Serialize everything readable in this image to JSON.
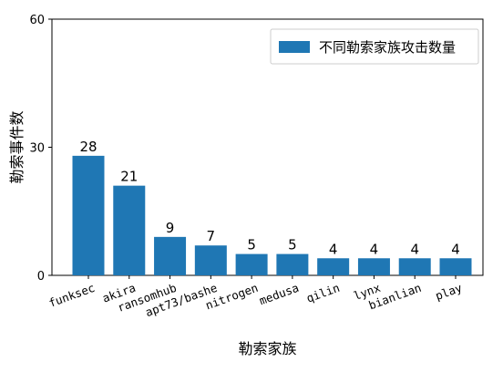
{
  "chart_data": {
    "type": "bar",
    "title": "",
    "xlabel": "勒索家族",
    "ylabel": "勒索事件数",
    "ylim": [
      0,
      60
    ],
    "yticks": [
      0,
      30,
      60
    ],
    "grid": false,
    "legend": {
      "position": "top-right"
    },
    "categories": [
      "funksec",
      "akira",
      "ransomhub",
      "apt73/bashe",
      "nitrogen",
      "medusa",
      "qilin",
      "lynx",
      "bianlian",
      "play"
    ],
    "series": [
      {
        "name": "不同勒索家族攻击数量",
        "color": "#1f77b4",
        "values": [
          28,
          21,
          9,
          7,
          5,
          5,
          4,
          4,
          4,
          4
        ]
      }
    ]
  }
}
